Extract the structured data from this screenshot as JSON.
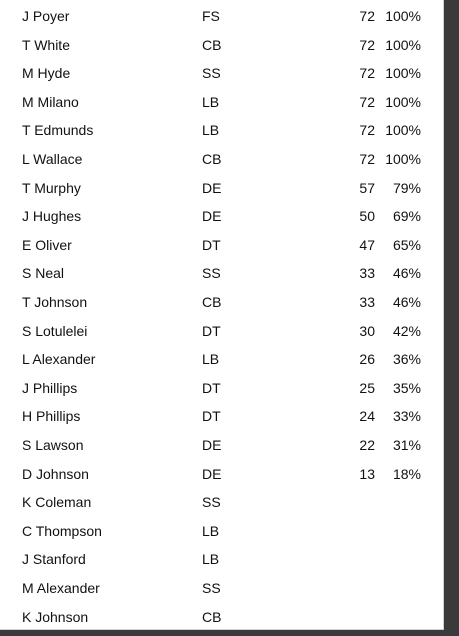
{
  "rows": [
    {
      "name": "J Poyer",
      "pos": "FS",
      "snaps": "72",
      "pct": "100%"
    },
    {
      "name": "T White",
      "pos": "CB",
      "snaps": "72",
      "pct": "100%"
    },
    {
      "name": "M Hyde",
      "pos": "SS",
      "snaps": "72",
      "pct": "100%"
    },
    {
      "name": "M Milano",
      "pos": "LB",
      "snaps": "72",
      "pct": "100%"
    },
    {
      "name": "T Edmunds",
      "pos": "LB",
      "snaps": "72",
      "pct": "100%"
    },
    {
      "name": "L Wallace",
      "pos": "CB",
      "snaps": "72",
      "pct": "100%"
    },
    {
      "name": "T Murphy",
      "pos": "DE",
      "snaps": "57",
      "pct": "79%"
    },
    {
      "name": "J Hughes",
      "pos": "DE",
      "snaps": "50",
      "pct": "69%"
    },
    {
      "name": "E Oliver",
      "pos": "DT",
      "snaps": "47",
      "pct": "65%"
    },
    {
      "name": "S Neal",
      "pos": "SS",
      "snaps": "33",
      "pct": "46%"
    },
    {
      "name": "T Johnson",
      "pos": "CB",
      "snaps": "33",
      "pct": "46%"
    },
    {
      "name": "S Lotulelei",
      "pos": "DT",
      "snaps": "30",
      "pct": "42%"
    },
    {
      "name": "L Alexander",
      "pos": "LB",
      "snaps": "26",
      "pct": "36%"
    },
    {
      "name": "J Phillips",
      "pos": "DT",
      "snaps": "25",
      "pct": "35%"
    },
    {
      "name": "H Phillips",
      "pos": "DT",
      "snaps": "24",
      "pct": "33%"
    },
    {
      "name": "S Lawson",
      "pos": "DE",
      "snaps": "22",
      "pct": "31%"
    },
    {
      "name": "D Johnson",
      "pos": "DE",
      "snaps": "13",
      "pct": "18%"
    },
    {
      "name": "K Coleman",
      "pos": "SS",
      "snaps": "",
      "pct": ""
    },
    {
      "name": "C Thompson",
      "pos": "LB",
      "snaps": "",
      "pct": ""
    },
    {
      "name": "J Stanford",
      "pos": "LB",
      "snaps": "",
      "pct": ""
    },
    {
      "name": "M Alexander",
      "pos": "SS",
      "snaps": "",
      "pct": ""
    },
    {
      "name": "K Johnson",
      "pos": "CB",
      "snaps": "",
      "pct": ""
    }
  ]
}
